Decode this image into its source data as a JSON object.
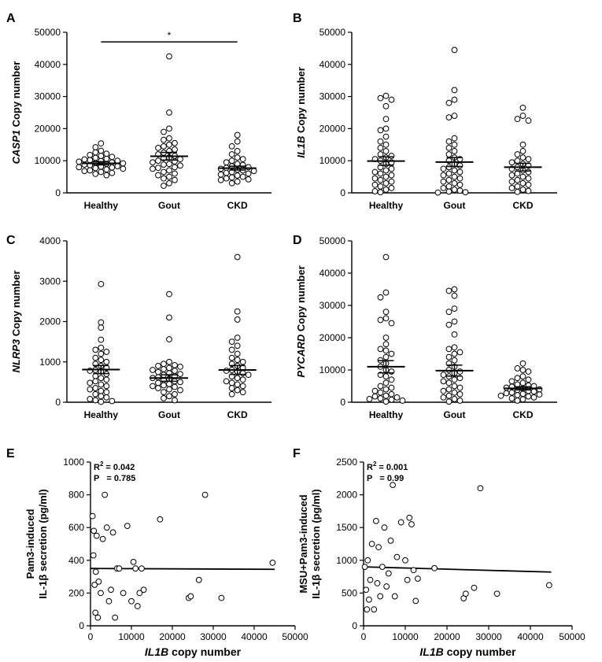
{
  "chart_data": [
    {
      "panel": "A",
      "type": "scatter",
      "ylabel_italic": "CASP1",
      "ylabel": "Copy number",
      "ylim": [
        0,
        50000
      ],
      "yticks": [
        "0",
        "10000",
        "20000",
        "30000",
        "40000",
        "50000"
      ],
      "categories": [
        "Healthy",
        "Gout",
        "CKD"
      ],
      "means": [
        9200,
        11400,
        7700
      ],
      "sem": [
        500,
        1200,
        600
      ],
      "significance": {
        "from": "Healthy",
        "to": "CKD",
        "label": "*",
        "y": 47000
      },
      "series": [
        {
          "name": "Healthy",
          "values": [
            15400,
            14200,
            13100,
            12600,
            12200,
            11800,
            11500,
            11200,
            10900,
            10600,
            10400,
            10200,
            10000,
            9900,
            9700,
            9500,
            9300,
            9200,
            9000,
            8900,
            8800,
            8600,
            8500,
            8300,
            8200,
            8000,
            7900,
            7700,
            7500,
            7300,
            7000,
            6800,
            6500,
            6200,
            5900,
            5500
          ]
        },
        {
          "name": "Gout",
          "values": [
            42500,
            25000,
            20000,
            19000,
            17000,
            16500,
            15500,
            15000,
            14500,
            14000,
            13500,
            13000,
            12500,
            12000,
            11500,
            11000,
            10800,
            10500,
            10000,
            9800,
            9500,
            9000,
            8800,
            8500,
            8000,
            7800,
            7500,
            7000,
            6500,
            6000,
            5500,
            5000,
            4500,
            4000,
            3000,
            2200
          ]
        },
        {
          "name": "CKD",
          "values": [
            18000,
            16000,
            14500,
            13000,
            12000,
            11000,
            10500,
            10000,
            9500,
            9000,
            8700,
            8300,
            8000,
            7800,
            7500,
            7200,
            7000,
            6800,
            6500,
            6200,
            6000,
            5700,
            5400,
            5000,
            4800,
            4500,
            4200,
            4000,
            3500,
            3000
          ]
        }
      ]
    },
    {
      "panel": "B",
      "type": "scatter",
      "ylabel_italic": "IL1B",
      "ylabel": "Copy number",
      "ylim": [
        0,
        50000
      ],
      "yticks": [
        "0",
        "10000",
        "20000",
        "30000",
        "40000",
        "50000"
      ],
      "categories": [
        "Healthy",
        "Gout",
        "CKD"
      ],
      "means": [
        9900,
        9600,
        8000
      ],
      "sem": [
        1300,
        1400,
        1200
      ],
      "series": [
        {
          "name": "Healthy",
          "values": [
            30200,
            29500,
            29000,
            27000,
            23000,
            20000,
            19500,
            17500,
            16000,
            15000,
            14000,
            13000,
            12000,
            11500,
            11000,
            10500,
            10000,
            9500,
            9000,
            8000,
            7500,
            7000,
            6500,
            6000,
            5500,
            5000,
            4500,
            4000,
            3500,
            3000,
            2500,
            2000,
            1500,
            1000,
            500,
            200
          ]
        },
        {
          "name": "Gout",
          "values": [
            44500,
            32000,
            29000,
            28000,
            24000,
            23500,
            17000,
            16000,
            15000,
            14000,
            13000,
            12000,
            11000,
            10500,
            10000,
            9000,
            8500,
            8000,
            7500,
            7000,
            6500,
            6000,
            5500,
            5000,
            4500,
            4000,
            3500,
            3000,
            2500,
            2000,
            1500,
            1000,
            700,
            400,
            200,
            100
          ]
        },
        {
          "name": "CKD",
          "values": [
            26500,
            24000,
            23000,
            22500,
            15000,
            13000,
            12000,
            11000,
            10500,
            10000,
            9500,
            9000,
            8500,
            8000,
            7500,
            7000,
            6500,
            6000,
            5500,
            5000,
            4500,
            4000,
            3500,
            3000,
            2500,
            2000,
            1500,
            1000,
            600,
            300
          ]
        }
      ]
    },
    {
      "panel": "C",
      "type": "scatter",
      "ylabel_italic": "NLRP3",
      "ylabel": "Copy number",
      "ylim": [
        0,
        4000
      ],
      "yticks": [
        "0",
        "1000",
        "2000",
        "3000",
        "4000"
      ],
      "categories": [
        "Healthy",
        "Gout",
        "CKD"
      ],
      "means": [
        810,
        600,
        800
      ],
      "sem": [
        100,
        80,
        110
      ],
      "series": [
        {
          "name": "Healthy",
          "values": [
            2930,
            1980,
            1850,
            1550,
            1350,
            1300,
            1250,
            1200,
            1100,
            1050,
            1000,
            950,
            900,
            850,
            800,
            780,
            760,
            700,
            650,
            600,
            560,
            520,
            480,
            440,
            400,
            350,
            320,
            280,
            250,
            200,
            150,
            120,
            80,
            50,
            30,
            10
          ]
        },
        {
          "name": "Gout",
          "values": [
            2680,
            2100,
            1560,
            1000,
            950,
            920,
            900,
            880,
            850,
            820,
            800,
            780,
            750,
            720,
            700,
            680,
            650,
            620,
            600,
            580,
            550,
            520,
            500,
            480,
            450,
            420,
            400,
            380,
            350,
            320,
            300,
            250,
            200,
            150,
            100,
            50
          ]
        },
        {
          "name": "CKD",
          "values": [
            3600,
            2250,
            2050,
            1600,
            1500,
            1400,
            1300,
            1200,
            1100,
            1050,
            1000,
            950,
            900,
            850,
            800,
            780,
            760,
            720,
            680,
            640,
            600,
            560,
            520,
            480,
            440,
            400,
            350,
            300,
            250,
            200
          ]
        }
      ]
    },
    {
      "panel": "D",
      "type": "scatter",
      "ylabel_italic": "PYCARD",
      "ylabel": "Copy number",
      "ylim": [
        0,
        50000
      ],
      "yticks": [
        "0",
        "10000",
        "20000",
        "30000",
        "40000",
        "50000"
      ],
      "categories": [
        "Healthy",
        "Gout",
        "CKD"
      ],
      "means": [
        11000,
        9800,
        4300
      ],
      "sem": [
        1900,
        1700,
        500
      ],
      "series": [
        {
          "name": "Healthy",
          "values": [
            45000,
            34000,
            32500,
            28000,
            26000,
            25500,
            24500,
            20000,
            18000,
            16500,
            16000,
            15000,
            14000,
            13000,
            12000,
            11000,
            10000,
            9500,
            8500,
            8000,
            7000,
            6000,
            5000,
            4500,
            4000,
            3500,
            3000,
            2500,
            2000,
            1800,
            1500,
            1200,
            1000,
            800,
            500,
            200
          ]
        },
        {
          "name": "Gout",
          "values": [
            35000,
            34500,
            33000,
            29000,
            28000,
            25000,
            24000,
            21000,
            17000,
            16500,
            15500,
            15000,
            14000,
            13000,
            12000,
            11000,
            10000,
            9500,
            9000,
            8500,
            8000,
            7500,
            7000,
            6500,
            6000,
            5000,
            4500,
            4000,
            3500,
            3000,
            2500,
            2000,
            1500,
            1000,
            500,
            200
          ]
        },
        {
          "name": "CKD",
          "values": [
            12000,
            10500,
            10000,
            9500,
            8000,
            7500,
            7000,
            6500,
            6000,
            5500,
            5200,
            5000,
            4800,
            4500,
            4300,
            4000,
            3800,
            3500,
            3300,
            3000,
            2800,
            2600,
            2400,
            2200,
            2000,
            1800,
            1500,
            1200,
            900,
            500
          ]
        }
      ]
    },
    {
      "panel": "E",
      "type": "scatter",
      "xlabel_italic": "IL1B",
      "xlabel": "copy number",
      "ylabel_lines": [
        "Pam3-induced",
        "IL-1β secretion (pg/ml)"
      ],
      "xlim": [
        0,
        50000
      ],
      "ylim": [
        0,
        1000
      ],
      "xticks": [
        "0",
        "10000",
        "20000",
        "30000",
        "40000",
        "50000"
      ],
      "yticks": [
        "0",
        "200",
        "400",
        "600",
        "800",
        "1000"
      ],
      "stats": {
        "r2_label": "R",
        "r2_sup": "2",
        "r2_value": "= 0.042",
        "p_label": "P",
        "p_value": "= 0.785"
      },
      "fit_line": {
        "x": [
          0,
          45000
        ],
        "y": [
          350,
          345
        ]
      },
      "points": {
        "x": [
          500,
          800,
          1000,
          1200,
          1500,
          1800,
          2000,
          2500,
          3000,
          3500,
          4000,
          4500,
          5000,
          5500,
          6000,
          6500,
          7000,
          8000,
          9000,
          10000,
          10500,
          11000,
          11500,
          12000,
          12500,
          13000,
          17000,
          24000,
          24500,
          26500,
          28000,
          32000,
          44500,
          700,
          1300
        ],
        "y": [
          670,
          580,
          250,
          80,
          550,
          50,
          270,
          200,
          530,
          800,
          600,
          150,
          220,
          570,
          50,
          350,
          350,
          200,
          610,
          150,
          390,
          350,
          120,
          200,
          350,
          220,
          650,
          170,
          180,
          280,
          800,
          170,
          385,
          430,
          330
        ]
      }
    },
    {
      "panel": "F",
      "type": "scatter",
      "xlabel_italic": "IL1B",
      "xlabel": "copy number",
      "ylabel_lines": [
        "MSU+Pam3-induced",
        "IL-1β secretion (pg/ml)"
      ],
      "xlim": [
        0,
        50000
      ],
      "ylim": [
        0,
        2500
      ],
      "xticks": [
        "0",
        "10000",
        "20000",
        "30000",
        "40000",
        "50000"
      ],
      "yticks": [
        "0",
        "500",
        "1000",
        "1500",
        "2000",
        "2500"
      ],
      "stats": {
        "r2_label": "R",
        "r2_sup": "2",
        "r2_value": "= 0.001",
        "p_label": "P",
        "p_value": "= 0.99"
      },
      "fit_line": {
        "x": [
          0,
          45000
        ],
        "y": [
          900,
          820
        ]
      },
      "points": {
        "x": [
          300,
          600,
          800,
          1000,
          1300,
          1600,
          2000,
          2500,
          3000,
          3300,
          3600,
          4000,
          4500,
          5000,
          5500,
          6000,
          6500,
          7000,
          7500,
          8000,
          9000,
          10000,
          10500,
          11000,
          11500,
          12000,
          12500,
          13000,
          17000,
          24000,
          24500,
          26500,
          28000,
          32000,
          44500
        ],
        "y": [
          900,
          550,
          250,
          1000,
          400,
          700,
          1250,
          250,
          1600,
          650,
          1200,
          450,
          900,
          1500,
          600,
          800,
          1300,
          2150,
          450,
          1050,
          1580,
          1000,
          700,
          1650,
          1550,
          850,
          380,
          720,
          880,
          420,
          490,
          580,
          2100,
          490,
          620
        ]
      }
    }
  ]
}
